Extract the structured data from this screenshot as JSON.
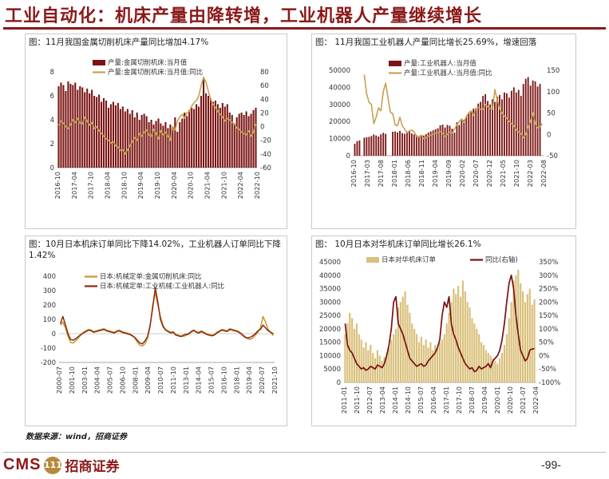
{
  "page": {
    "title": "工业自动化：机床产量由降转增，工业机器人产量继续增长",
    "source": "数据来源：wind，招商证券",
    "logo_en": "CMS",
    "logo_mark": "111",
    "logo_cn": "招商证券",
    "page_number": "-99-"
  },
  "colors": {
    "bar": "#7b1414",
    "line": "#c4a250",
    "bar_light": "#d9c07a",
    "line_dark": "#8b1a1a"
  },
  "panels": [
    {
      "caption": "图：11月我国金属切削机床产量同比增加4.17%"
    },
    {
      "caption": "图： 11月我国工业机器人产量同比增长25.69%，增速回落"
    },
    {
      "caption": "图：10月日本机床订单同比下降14.02%，工业机器人订单同比下降1.42%"
    },
    {
      "caption": "图： 10月日本对华机床订单同比增长26.1%"
    }
  ],
  "chart_data": [
    {
      "type": "bar",
      "title": "图：11月我国金属切削机床产量同比增加4.17%",
      "x_ticks": [
        "2016-10",
        "2017-04",
        "2017-10",
        "2018-04",
        "2018-10",
        "2019-04",
        "2019-10",
        "2020-04",
        "2020-10",
        "2021-04",
        "2021-10",
        "2022-04",
        "2022-10"
      ],
      "series": [
        {
          "name": "产量:金属切削机床:当月值",
          "type": "bar",
          "axis": "left",
          "values": [
            6.8,
            7.1,
            6.9,
            6.4,
            7.2,
            7.0,
            6.9,
            7.1,
            6.5,
            6.8,
            6.7,
            6.3,
            6.6,
            6.2,
            6.5,
            6.0,
            5.9,
            6.1,
            5.5,
            5.8,
            5.6,
            5.0,
            5.3,
            5.5,
            5.2,
            5.4,
            4.9,
            5.1,
            4.7,
            4.9,
            4.5,
            4.8,
            4.2,
            4.6,
            4.0,
            4.4,
            4.5,
            4.3,
            3.8,
            4.0,
            3.6,
            3.9,
            4.1,
            3.7,
            3.5,
            3.8,
            3.3,
            3.6,
            3.4,
            4.2,
            3.0,
            3.8,
            4.1,
            4.6,
            4.3,
            4.8,
            5.0,
            4.9,
            5.3,
            5.1,
            6.0,
            7.4,
            6.2,
            6.0,
            5.8,
            5.5,
            5.6,
            5.3,
            5.0,
            5.4,
            5.1,
            5.3,
            4.6,
            4.4,
            3.7,
            4.2,
            4.5,
            4.6,
            4.4,
            4.7,
            4.3,
            4.5,
            4.8,
            5.0
          ]
        },
        {
          "name": "产量:金属切削机床:当月值:同比",
          "type": "line",
          "axis": "right",
          "values": [
            2,
            8,
            5,
            0,
            -3,
            3,
            10,
            6,
            12,
            5,
            4,
            14,
            8,
            2,
            6,
            -3,
            0,
            -6,
            -10,
            -14,
            -18,
            -20,
            -24,
            -22,
            -28,
            -30,
            -35,
            -34,
            -40,
            -34,
            -28,
            -22,
            -16,
            -20,
            -10,
            -14,
            -8,
            -5,
            -12,
            -14,
            -4,
            -10,
            -18,
            -6,
            -12,
            -8,
            -14,
            -20,
            0,
            -5,
            8,
            14,
            18,
            12,
            20,
            22,
            30,
            35,
            38,
            45,
            60,
            72,
            65,
            52,
            40,
            32,
            28,
            22,
            18,
            14,
            8,
            12,
            10,
            6,
            4,
            -2,
            -4,
            -8,
            -10,
            -12,
            -6,
            -14,
            -8,
            4
          ]
        }
      ],
      "y_left": {
        "range": [
          0,
          8
        ],
        "ticks": [
          0,
          2,
          4,
          6,
          8
        ]
      },
      "y_right": {
        "range": [
          -60,
          80
        ],
        "ticks": [
          -60,
          -40,
          -20,
          0,
          20,
          40,
          60,
          80
        ]
      }
    },
    {
      "type": "bar",
      "title": "图： 11月我国工业机器人产量同比增长25.69%，增速回落",
      "x_ticks": [
        "2016-10",
        "2017-03",
        "2017-08",
        "2018-01",
        "2018-06",
        "2018-11",
        "2019-04",
        "2019-09",
        "2020-02",
        "2020-07",
        "2020-12",
        "2021-05",
        "2021-10",
        "2022-03",
        "2022-08"
      ],
      "series": [
        {
          "name": "产量:工业机器人:当月值",
          "type": "bar",
          "axis": "left",
          "values": [
            7000,
            8500,
            8900,
            null,
            10500,
            10800,
            11000,
            11500,
            12400,
            11800,
            11200,
            12500,
            13400,
            12800,
            null,
            null,
            14000,
            14200,
            13600,
            14500,
            13200,
            12800,
            13800,
            14500,
            13000,
            12400,
            12000,
            11500,
            12000,
            11800,
            12600,
            13500,
            14200,
            14800,
            15500,
            16000,
            17800,
            18200,
            16500,
            18000,
            17500,
            15800,
            13500,
            19500,
            18000,
            20500,
            21000,
            23000,
            25000,
            26000,
            27500,
            28000,
            30500,
            31500,
            35000,
            36000,
            32000,
            30000,
            33000,
            31500,
            34500,
            35500,
            33000,
            37000,
            36500,
            34000,
            38000,
            40000,
            37000,
            38500,
            35000,
            42000,
            45000,
            46000,
            41000,
            44000,
            43500,
            40500,
            42000
          ]
        },
        {
          "name": "产量:工业机器人:当月值:同比",
          "type": "line",
          "axis": "right",
          "values": [
            null,
            null,
            null,
            null,
            140,
            95,
            75,
            70,
            25,
            40,
            62,
            55,
            100,
            120,
            85,
            52,
            48,
            22,
            20,
            40,
            20,
            12,
            4,
            8,
            10,
            6,
            -5,
            -6,
            -2,
            -10,
            -8,
            -4,
            -2,
            0,
            2,
            4,
            6,
            2,
            -5,
            0,
            5,
            3,
            12,
            22,
            30,
            36,
            28,
            42,
            50,
            55,
            44,
            60,
            62,
            58,
            58,
            70,
            65,
            60,
            58,
            105,
            80,
            60,
            50,
            42,
            38,
            30,
            25,
            20,
            10,
            5,
            2,
            -8,
            0,
            18,
            30,
            50,
            25,
            15,
            18,
            25
          ]
        }
      ],
      "y_left": {
        "range": [
          0,
          50000
        ],
        "ticks": [
          0,
          10000,
          20000,
          30000,
          40000,
          50000
        ]
      },
      "y_right": {
        "range": [
          -50,
          150
        ],
        "ticks": [
          -50,
          0,
          50,
          100,
          150
        ]
      }
    },
    {
      "type": "line",
      "title": "图：10月日本机床订单同比下降14.02%，工业机器人订单同比下降1.42%",
      "x_ticks": [
        "2000-07",
        "2001-10",
        "2003-01",
        "2004-04",
        "2005-07",
        "2006-10",
        "2008-01",
        "2009-04",
        "2010-07",
        "2011-10",
        "2013-01",
        "2014-04",
        "2015-07",
        "2016-10",
        "2018-01",
        "2019-04",
        "2020-07",
        "2021-10"
      ],
      "series": [
        {
          "name": "日本:机械定单:金属切削机床:同比",
          "values": [
            60,
            80,
            40,
            -20,
            -60,
            -65,
            -50,
            -30,
            -10,
            10,
            20,
            30,
            25,
            15,
            20,
            25,
            30,
            35,
            25,
            20,
            15,
            10,
            20,
            25,
            15,
            10,
            5,
            0,
            -10,
            -30,
            -60,
            -80,
            -85,
            -70,
            -30,
            50,
            200,
            285,
            200,
            120,
            60,
            30,
            20,
            10,
            15,
            -5,
            -10,
            -15,
            -20,
            -10,
            -5,
            10,
            20,
            15,
            10,
            20,
            10,
            0,
            -5,
            -10,
            -5,
            10,
            20,
            30,
            25,
            20,
            35,
            30,
            25,
            20,
            10,
            -5,
            -20,
            -35,
            -40,
            -30,
            -10,
            10,
            40,
            120,
            80,
            30,
            10,
            -14
          ]
        },
        {
          "name": "日本:机械定单:工业机械:工业机器人:同比",
          "values": [
            70,
            120,
            60,
            0,
            -40,
            -45,
            -35,
            -20,
            -5,
            5,
            15,
            25,
            20,
            10,
            15,
            20,
            25,
            30,
            20,
            15,
            10,
            5,
            15,
            20,
            10,
            5,
            0,
            -5,
            -15,
            -25,
            -45,
            -65,
            -70,
            -50,
            -20,
            60,
            180,
            320,
            220,
            100,
            50,
            25,
            15,
            5,
            10,
            -10,
            -15,
            -20,
            -10,
            -5,
            0,
            15,
            25,
            10,
            5,
            15,
            5,
            -5,
            -10,
            -15,
            -10,
            5,
            15,
            25,
            20,
            15,
            30,
            25,
            20,
            15,
            5,
            -10,
            -25,
            -30,
            -25,
            -15,
            0,
            20,
            30,
            60,
            40,
            20,
            10,
            -1
          ]
        }
      ],
      "y": {
        "range": [
          -200,
          400
        ],
        "ticks": [
          -200,
          -100,
          0,
          100,
          200,
          300,
          400
        ]
      }
    },
    {
      "type": "bar",
      "title": "图： 10月日本对华机床订单同比增长26.1%",
      "x_ticks": [
        "2011-01",
        "2011-10",
        "2012-07",
        "2013-04",
        "2014-01",
        "2014-10",
        "2015-07",
        "2016-04",
        "2017-01",
        "2017-10",
        "2018-07",
        "2019-04",
        "2020-01",
        "2020-10",
        "2021-07",
        "2022-04"
      ],
      "series": [
        {
          "name": "日本对华机床订单",
          "type": "bar",
          "axis": "left",
          "values": [
            18000,
            22000,
            26000,
            24000,
            20000,
            22000,
            18000,
            16000,
            13000,
            15000,
            12000,
            14000,
            11000,
            9000,
            12000,
            10000,
            8000,
            9500,
            11000,
            13000,
            16000,
            18000,
            20000,
            28000,
            30000,
            32000,
            34000,
            29000,
            26000,
            22000,
            20000,
            18000,
            15000,
            17000,
            14000,
            16000,
            13000,
            15000,
            12000,
            14000,
            13000,
            15000,
            16000,
            18000,
            22000,
            26000,
            30000,
            35000,
            33000,
            36000,
            32000,
            38000,
            34000,
            30000,
            28000,
            24000,
            22000,
            20000,
            18000,
            15000,
            14000,
            12000,
            11000,
            10000,
            9000,
            8000,
            7000,
            9000,
            11000,
            14000,
            18000,
            24000,
            30000,
            38000,
            40000,
            42000,
            37000,
            34000,
            30000,
            33000,
            35000,
            29000,
            31000
          ]
        },
        {
          "name": "同比(右轴)",
          "type": "line",
          "axis": "right",
          "values": [
            120,
            40,
            20,
            10,
            -10,
            -30,
            -40,
            -50,
            -45,
            -55,
            -50,
            -40,
            -45,
            -50,
            -35,
            -40,
            -45,
            -30,
            0,
            40,
            100,
            200,
            220,
            120,
            100,
            80,
            50,
            20,
            -10,
            -20,
            -30,
            -40,
            -35,
            -30,
            -40,
            -35,
            -20,
            -10,
            0,
            10,
            30,
            60,
            150,
            200,
            180,
            220,
            120,
            80,
            60,
            30,
            10,
            -10,
            -30,
            -40,
            -50,
            -45,
            -60,
            -55,
            -40,
            -50,
            -45,
            -40,
            -30,
            -45,
            -20,
            -10,
            0,
            20,
            60,
            120,
            200,
            270,
            300,
            250,
            150,
            80,
            20,
            0,
            -20,
            -10,
            20,
            25,
            26
          ]
        }
      ],
      "y_left": {
        "range": [
          0,
          45000
        ],
        "ticks": [
          0,
          5000,
          10000,
          15000,
          20000,
          25000,
          30000,
          35000,
          40000,
          45000
        ]
      },
      "y_right": {
        "range": [
          -100,
          350
        ],
        "ticks": [
          -100,
          -50,
          0,
          50,
          100,
          150,
          200,
          250,
          300,
          350
        ]
      }
    }
  ]
}
